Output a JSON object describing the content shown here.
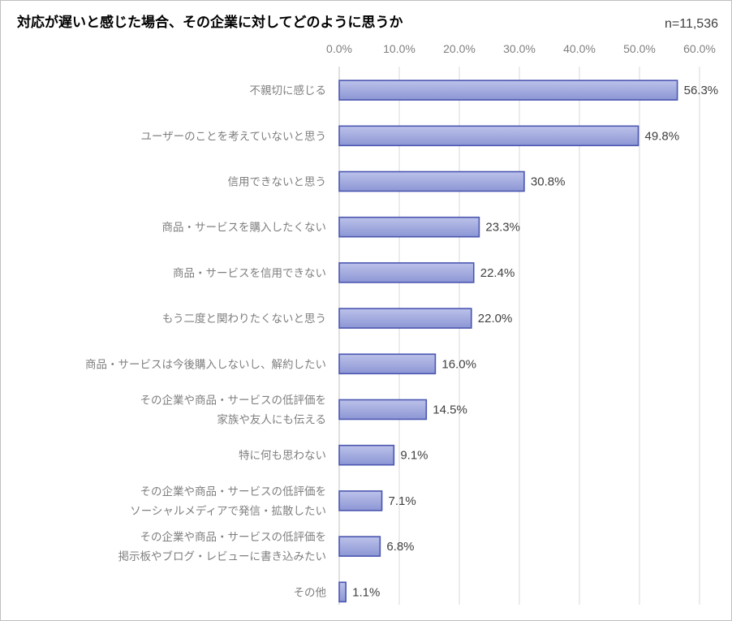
{
  "chart_data": {
    "type": "bar",
    "orientation": "horizontal",
    "title": "対応が遅いと感じた場合、その企業に対してどのように思うか",
    "sample_size": "n=11,536",
    "xlim": [
      0,
      60
    ],
    "x_ticks": [
      "0.0%",
      "10.0%",
      "20.0%",
      "30.0%",
      "40.0%",
      "50.0%",
      "60.0%"
    ],
    "x_tick_values": [
      0,
      10,
      20,
      30,
      40,
      50,
      60
    ],
    "x_axis_position": "top",
    "grid": true,
    "bar_color": "#a4acde",
    "bar_border_color": "#4a56b0",
    "categories": [
      [
        "不親切に感じる"
      ],
      [
        "ユーザーのことを考えていないと思う"
      ],
      [
        "信用できないと思う"
      ],
      [
        "商品・サービスを購入したくない"
      ],
      [
        "商品・サービスを信用できない"
      ],
      [
        "もう二度と関わりたくないと思う"
      ],
      [
        "商品・サービスは今後購入しないし、解約したい"
      ],
      [
        "その企業や商品・サービスの低評価を",
        "家族や友人にも伝える"
      ],
      [
        "特に何も思わない"
      ],
      [
        "その企業や商品・サービスの低評価を",
        "ソーシャルメディアで発信・拡散したい"
      ],
      [
        "その企業や商品・サービスの低評価を",
        "掲示板やブログ・レビューに書き込みたい"
      ],
      [
        "その他"
      ]
    ],
    "values": [
      56.3,
      49.8,
      30.8,
      23.3,
      22.4,
      22.0,
      16.0,
      14.5,
      9.1,
      7.1,
      6.8,
      1.1
    ],
    "value_labels": [
      "56.3%",
      "49.8%",
      "30.8%",
      "23.3%",
      "22.4%",
      "22.0%",
      "16.0%",
      "14.5%",
      "9.1%",
      "7.1%",
      "6.8%",
      "1.1%"
    ]
  }
}
